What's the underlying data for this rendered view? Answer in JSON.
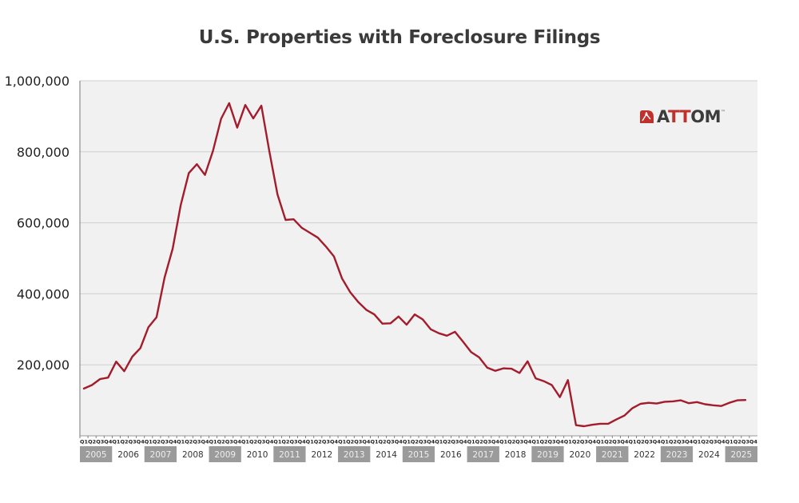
{
  "chart_data": {
    "type": "line",
    "title": "U.S. Properties with Foreclosure Filings",
    "xlabel": "",
    "ylabel": "",
    "ylim": [
      0,
      1000000
    ],
    "y_ticks": [
      200000,
      400000,
      600000,
      800000,
      1000000
    ],
    "y_tick_labels": [
      "200,000",
      "400,000",
      "600,000",
      "800,000",
      "1,000,000"
    ],
    "grid": "horizontal",
    "quarter_labels": [
      "Q1",
      "Q2",
      "Q3",
      "Q4"
    ],
    "years": [
      "2005",
      "2006",
      "2007",
      "2008",
      "2009",
      "2010",
      "2011",
      "2012",
      "2013",
      "2014",
      "2015",
      "2016",
      "2017",
      "2018",
      "2019",
      "2020",
      "2021",
      "2022",
      "2023",
      "2024",
      "2025"
    ],
    "shaded_years": [
      "2005",
      "2007",
      "2009",
      "2011",
      "2013",
      "2015",
      "2017",
      "2019",
      "2021",
      "2023",
      "2025"
    ],
    "series": [
      {
        "name": "Properties with Foreclosure Filings",
        "color": "#a31c2c",
        "values": [
          133000,
          143000,
          160000,
          164000,
          209000,
          182000,
          223000,
          247000,
          306000,
          334000,
          446000,
          527000,
          650000,
          740000,
          765000,
          735000,
          803000,
          893000,
          937000,
          868000,
          932000,
          894000,
          930000,
          800000,
          680000,
          608000,
          610000,
          586000,
          572000,
          558000,
          533000,
          505000,
          443000,
          405000,
          377000,
          355000,
          342000,
          316000,
          317000,
          336000,
          313000,
          342000,
          328000,
          300000,
          289000,
          282000,
          293000,
          265000,
          236000,
          221000,
          192000,
          183000,
          190000,
          189000,
          177000,
          210000,
          162000,
          154000,
          143000,
          109000,
          157000,
          30000,
          27000,
          31000,
          34000,
          34000,
          46000,
          57000,
          78000,
          90000,
          93000,
          91000,
          96000,
          97000,
          100000,
          92000,
          95000,
          89000,
          86000,
          84000,
          93000,
          100000,
          101000
        ]
      }
    ]
  },
  "logo": {
    "prefix": "A",
    "red": "TT",
    "suffix": "OM",
    "tm": "™",
    "brand_color": "#c0302c"
  }
}
